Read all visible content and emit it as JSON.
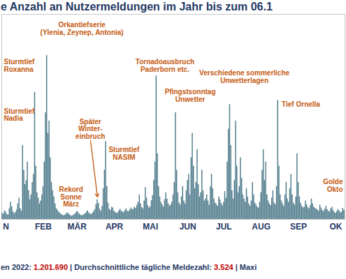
{
  "chart_data": {
    "type": "bar",
    "title": "e Anzahl an Nutzermeldungen im Jahr bis zum 06.1",
    "caption": [
      {
        "text": "en 2022: ",
        "color": "#1f3864"
      },
      {
        "text": "1.201.690",
        "color": "#c00000"
      },
      {
        "text": " | Durchschnittliche tägliche Meldezahl: ",
        "color": "#1f3864"
      },
      {
        "text": "3.524",
        "color": "#c00000"
      },
      {
        "text": " | Maxi",
        "color": "#1f3864"
      }
    ],
    "categories": [
      null,
      null,
      null,
      "N",
      null,
      null,
      null,
      null,
      null,
      null,
      null,
      null,
      null,
      null,
      null,
      null,
      null,
      null,
      null,
      null,
      null,
      null,
      null,
      null,
      null,
      null,
      null,
      null,
      null,
      null,
      null,
      null,
      null,
      null,
      "FEB",
      null,
      null,
      null,
      null,
      null,
      null,
      null,
      null,
      null,
      null,
      null,
      null,
      null,
      null,
      null,
      null,
      null,
      null,
      null,
      null,
      null,
      null,
      null,
      null,
      null,
      null,
      null,
      "MÄR",
      null,
      null,
      null,
      null,
      null,
      null,
      null,
      null,
      null,
      null,
      null,
      null,
      null,
      null,
      null,
      null,
      null,
      null,
      null,
      null,
      null,
      null,
      null,
      null,
      null,
      null,
      null,
      null,
      null,
      null,
      "APR",
      null,
      null,
      null,
      null,
      null,
      null,
      null,
      null,
      null,
      null,
      null,
      null,
      null,
      null,
      null,
      null,
      null,
      null,
      null,
      null,
      null,
      null,
      null,
      null,
      null,
      null,
      null,
      null,
      null,
      "MAI",
      null,
      null,
      null,
      null,
      null,
      null,
      null,
      null,
      null,
      null,
      null,
      null,
      null,
      null,
      null,
      null,
      null,
      null,
      null,
      null,
      null,
      null,
      null,
      null,
      null,
      null,
      null,
      null,
      null,
      null,
      "JUN",
      null,
      null,
      null,
      null,
      null,
      null,
      null,
      null,
      null,
      null,
      null,
      null,
      null,
      null,
      null,
      null,
      null,
      null,
      null,
      null,
      null,
      null,
      null,
      null,
      null,
      null,
      null,
      null,
      null,
      "JUL",
      null,
      null,
      null,
      null,
      null,
      null,
      null,
      null,
      null,
      null,
      null,
      null,
      null,
      null,
      null,
      null,
      null,
      null,
      null,
      null,
      null,
      null,
      null,
      null,
      null,
      null,
      null,
      null,
      null,
      null,
      "AUG",
      null,
      null,
      null,
      null,
      null,
      null,
      null,
      null,
      null,
      null,
      null,
      null,
      null,
      null,
      null,
      null,
      null,
      null,
      null,
      null,
      null,
      null,
      null,
      null,
      null,
      null,
      null,
      null,
      null,
      null,
      "SEP",
      null,
      null,
      null,
      null,
      null,
      null,
      null,
      null,
      null,
      null,
      null,
      null,
      null,
      null,
      null,
      null,
      null,
      null,
      null,
      null,
      null,
      null,
      null,
      null,
      null,
      null,
      null,
      null,
      null,
      null,
      "OK",
      null,
      null,
      null,
      null,
      null,
      null,
      null
    ],
    "values": [
      1500,
      1300,
      2100,
      1800,
      1200,
      1100,
      2600,
      4200,
      3100,
      1900,
      1400,
      1700,
      2300,
      3800,
      5200,
      2600,
      2000,
      18000,
      12000,
      8500,
      9500,
      14000,
      7000,
      4800,
      6000,
      9000,
      11000,
      31000,
      13000,
      6500,
      5200,
      3800,
      4500,
      6000,
      8000,
      14000,
      26000,
      40000,
      21000,
      24000,
      15000,
      9000,
      7000,
      5500,
      3800,
      2600,
      2200,
      1800,
      1500,
      1200,
      1100,
      900,
      1000,
      1300,
      1600,
      1400,
      1100,
      900,
      800,
      1000,
      1200,
      1500,
      2000,
      1700,
      1300,
      1100,
      900,
      1000,
      1200,
      1400,
      1800,
      2100,
      1600,
      1300,
      1200,
      1500,
      1900,
      2400,
      3600,
      4800,
      3900,
      2500,
      2000,
      3200,
      7500,
      12000,
      19000,
      8000,
      4000,
      2500,
      2200,
      3000,
      2800,
      2000,
      1700,
      1500,
      1600,
      2100,
      2500,
      2000,
      1800,
      1700,
      2200,
      2600,
      2000,
      1900,
      2300,
      2800,
      2400,
      2500,
      3000,
      2700,
      3500,
      4200,
      6000,
      3800,
      2900,
      2600,
      4500,
      7800,
      5200,
      3400,
      2800,
      3100,
      4600,
      5800,
      9500,
      14000,
      35000,
      16000,
      8000,
      5500,
      4200,
      3600,
      3000,
      4800,
      6500,
      5000,
      3800,
      3200,
      3500,
      4200,
      6000,
      9000,
      26000,
      12000,
      6500,
      4000,
      3500,
      5500,
      8000,
      4500,
      3800,
      7000,
      9500,
      11000,
      6000,
      15000,
      21000,
      13000,
      7500,
      9000,
      17000,
      8500,
      5500,
      6500,
      12000,
      7000,
      4500,
      5000,
      6000,
      4500,
      3500,
      8000,
      11000,
      7500,
      5000,
      4000,
      3600,
      3200,
      5500,
      4800,
      3900,
      3300,
      4200,
      6800,
      5200,
      14000,
      22000,
      28000,
      18000,
      7000,
      5000,
      9500,
      24000,
      13000,
      6500,
      8000,
      15000,
      10000,
      6000,
      5000,
      4200,
      7500,
      5500,
      3800,
      3200,
      4500,
      9000,
      6000,
      4000,
      3500,
      3000,
      2800,
      4200,
      6500,
      12000,
      17000,
      9500,
      14000,
      6000,
      4500,
      3800,
      3400,
      5200,
      7000,
      4000,
      3600,
      8000,
      29000,
      13000,
      6000,
      4500,
      3800,
      3200,
      6000,
      9000,
      5000,
      4200,
      7500,
      11000,
      6000,
      4000,
      3500,
      5500,
      16000,
      9000,
      5500,
      4000,
      3200,
      2800,
      3000,
      4500,
      3600,
      2900,
      2600,
      3400,
      5000,
      3800,
      3000,
      2700,
      2500,
      2300,
      2000,
      3500,
      2800,
      2200,
      1900,
      2500,
      3200,
      2400,
      2000,
      1800,
      2600,
      3000,
      2200,
      1700,
      1500,
      1900,
      2400,
      2100,
      1600,
      1800,
      2700,
      2200
    ],
    "color": "#4f7b8c",
    "ylim": [
      0,
      50000
    ],
    "grid": false,
    "tick_labels": "x",
    "annotations": [
      {
        "text": "Orkantiefserie\n(Ylenia, Zeynep, Antonia)",
        "x": 66,
        "y": 45000,
        "color": "#c55a11"
      },
      {
        "text": "Sturmtief\nRoxanna",
        "x": 0,
        "y": 36000,
        "color": "#c55a11"
      },
      {
        "text": "Sturmtief\nNadia",
        "x": 0,
        "y": 24000,
        "color": "#c55a11"
      },
      {
        "text": "Rekord\nSonne\nMärz",
        "x": 57,
        "y": 3100,
        "color": "#c55a11"
      },
      {
        "text": "Später\nWinter-\neinbruch",
        "x": 73,
        "y": 19700,
        "color": "#c55a11",
        "arrow": {
          "x": 79,
          "y": 5300
        }
      },
      {
        "text": "Sturmtief\nNASIM",
        "x": 101,
        "y": 14600,
        "color": "#c55a11"
      },
      {
        "text": "Tornadoausbruch\nPaderborn etc.",
        "x": 135,
        "y": 36000,
        "color": "#c55a11"
      },
      {
        "text": "Pfingstsonntag\nUnwetter",
        "x": 156,
        "y": 28700,
        "color": "#c55a11"
      },
      {
        "text": "Verschiedene sommerliche\nUnwetterlagen",
        "x": 201,
        "y": 33300,
        "color": "#c55a11"
      },
      {
        "text": "Tief Ornella",
        "x": 248,
        "y": 27500,
        "color": "#c55a11"
      },
      {
        "text": "Golde\nOkto",
        "x": 284,
        "y": 6800,
        "color": "#c55a11"
      }
    ]
  }
}
